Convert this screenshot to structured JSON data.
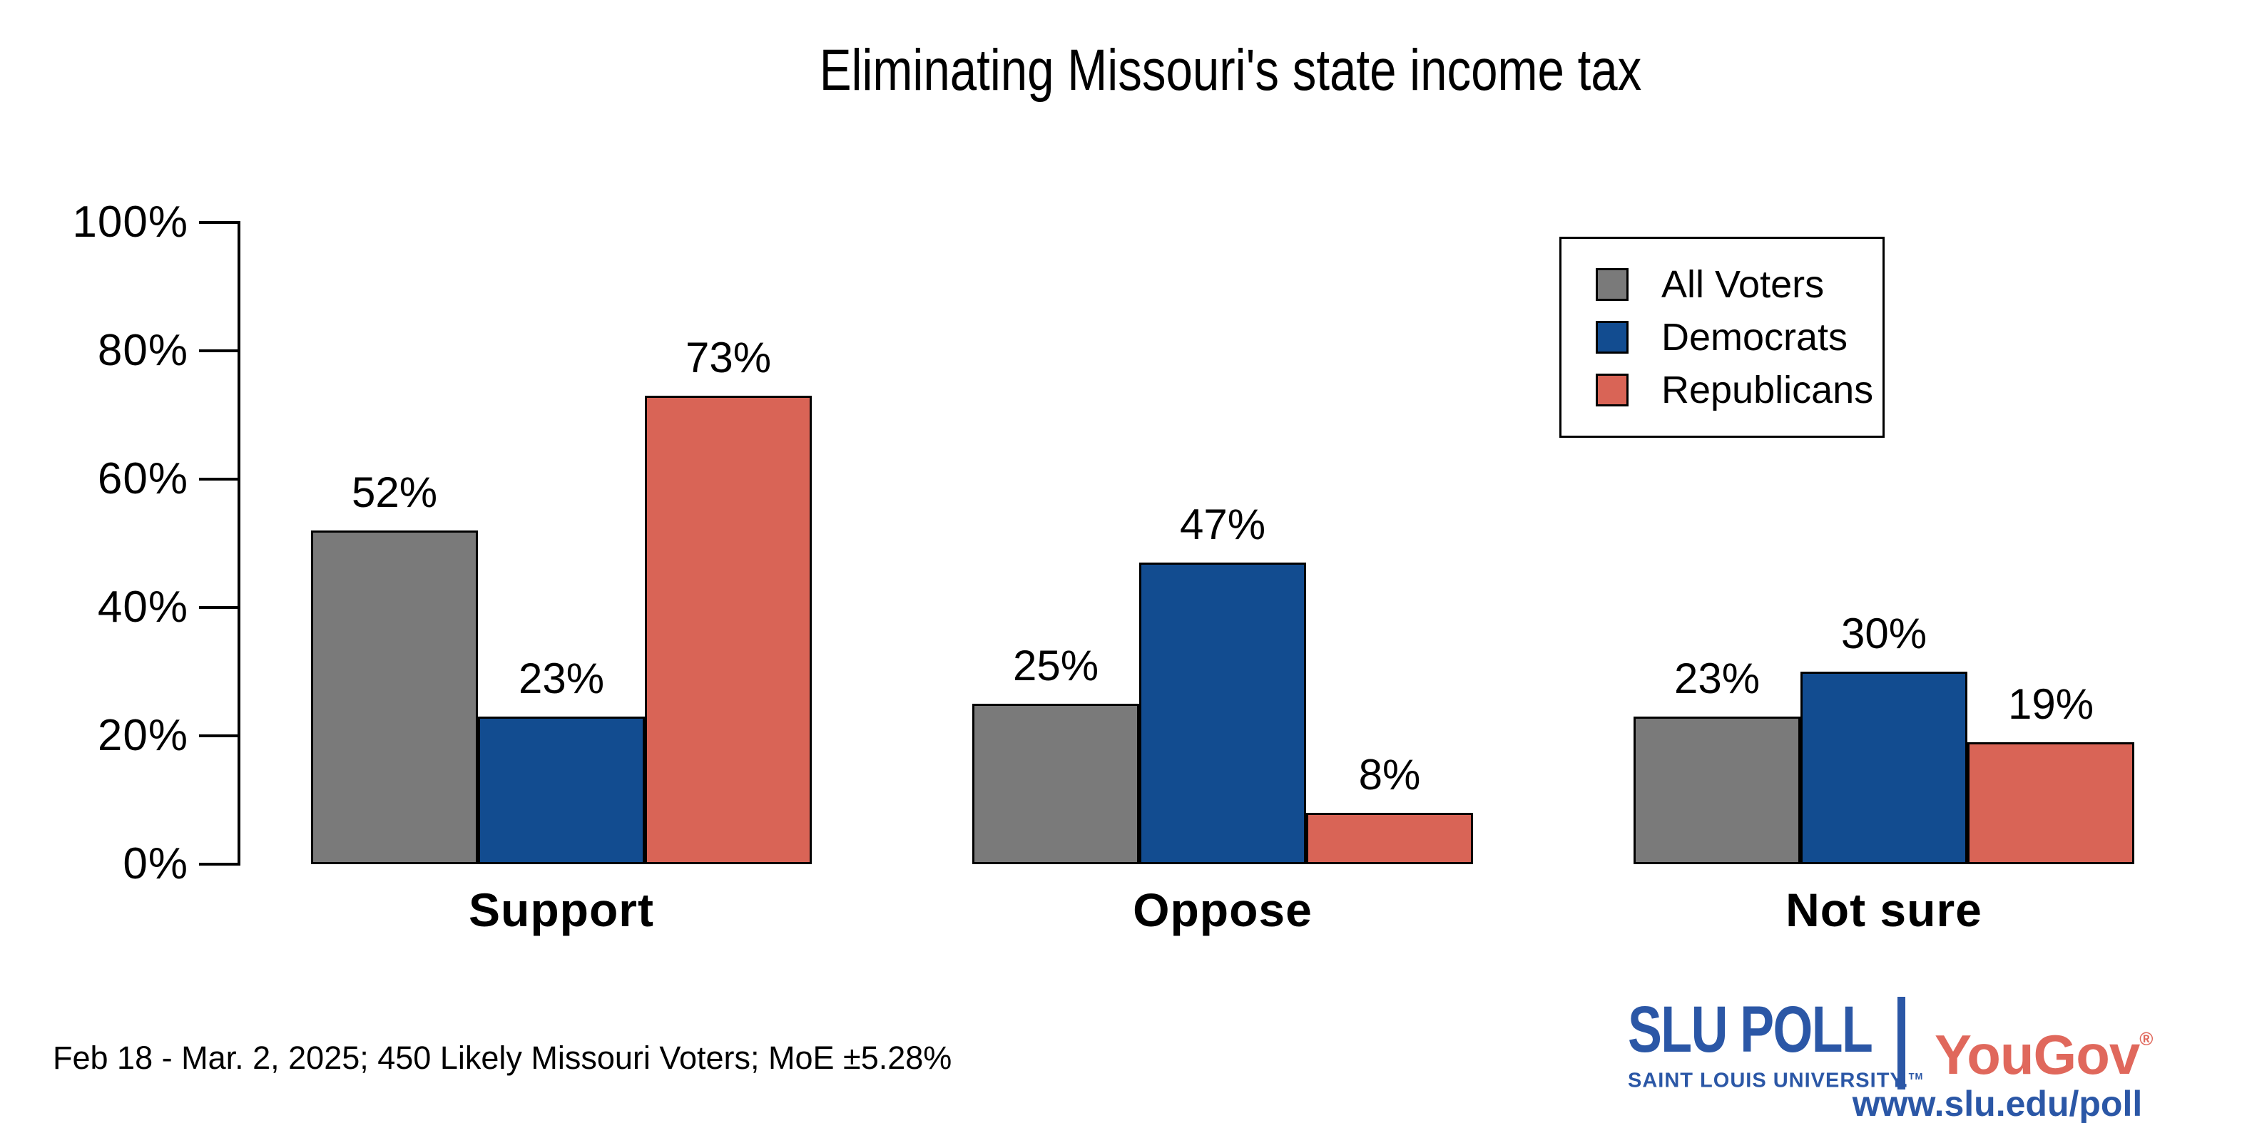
{
  "title": "Eliminating Missouri's state income tax",
  "chart_data": {
    "type": "bar",
    "title": "Eliminating Missouri's state income tax",
    "categories": [
      "Support",
      "Oppose",
      "Not sure"
    ],
    "series": [
      {
        "name": "All Voters",
        "color": "#7A7A7A",
        "values": [
          52,
          25,
          23
        ]
      },
      {
        "name": "Democrats",
        "color": "#124C90",
        "values": [
          23,
          47,
          30
        ]
      },
      {
        "name": "Republicans",
        "color": "#D96456",
        "values": [
          73,
          8,
          19
        ]
      }
    ],
    "value_suffix": "%",
    "xlabel": "",
    "ylabel": "",
    "ylim": [
      0,
      100
    ],
    "yticks": [
      {
        "label": "0%",
        "value": 0
      },
      {
        "label": "20%",
        "value": 20
      },
      {
        "label": "40%",
        "value": 40
      },
      {
        "label": "60%",
        "value": 60
      },
      {
        "label": "80%",
        "value": 80
      },
      {
        "label": "100%",
        "value": 100
      }
    ],
    "grid": false,
    "legend_position": "top-right",
    "bar_border_color": "#000000"
  },
  "footnote": "Feb 18 - Mar. 2, 2025; 450 Likely Missouri Voters; MoE ±5.28%",
  "branding": {
    "slu_poll": "SLU POLL",
    "slu_subtitle": "SAINT LOUIS UNIVERSITY.",
    "slu_trademark": "TM",
    "yougov": "YouGov",
    "yougov_registered": "®",
    "url": "www.slu.edu/poll",
    "slu_blue": "#2B57A6",
    "yougov_red": "#E0685C"
  }
}
